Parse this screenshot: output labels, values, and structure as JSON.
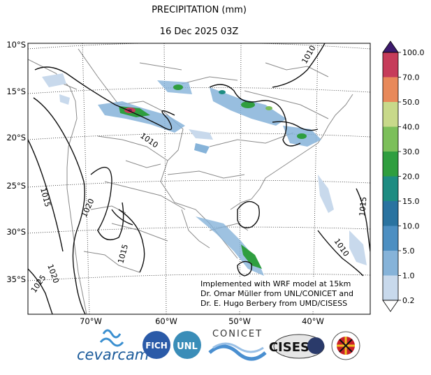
{
  "title": "PRECIPITATION (mm)",
  "subtitle": "16 Dec 2025 03Z",
  "lat_labels": [
    "10°S",
    "15°S",
    "20°S",
    "25°S",
    "30°S",
    "35°S"
  ],
  "lon_labels": [
    "70°W",
    "60°W",
    "50°W",
    "40°W"
  ],
  "colorbar": {
    "levels": [
      "0.2",
      "1.0",
      "5.0",
      "10.0",
      "15.0",
      "20.0",
      "30.0",
      "40.0",
      "50.0",
      "70.0",
      "100.0"
    ],
    "colors": [
      "#ffffff",
      "#c8d9ec",
      "#86b3d9",
      "#4d8fc2",
      "#2a73a0",
      "#1e8c82",
      "#2f9e3f",
      "#7cbf5a",
      "#c8d98a",
      "#e8895a",
      "#c63c5a",
      "#7a1a5a",
      "#3d1a6e"
    ]
  },
  "isobar_labels": [
    "1010",
    "1010",
    "1015",
    "1020",
    "1015",
    "1020",
    "1025",
    "1015",
    "1010"
  ],
  "credits": [
    "Implemented with WRF model at 15km",
    "Dr. Omar Müller from UNL/CONICET and",
    "Dr. E. Hugo Berbery from UMD/CISESS"
  ],
  "logos": {
    "cevarcam": "cevarcam",
    "fich": "FICH",
    "unl": "UNL",
    "conicet": "CONICET",
    "cisess": "CISESS"
  }
}
